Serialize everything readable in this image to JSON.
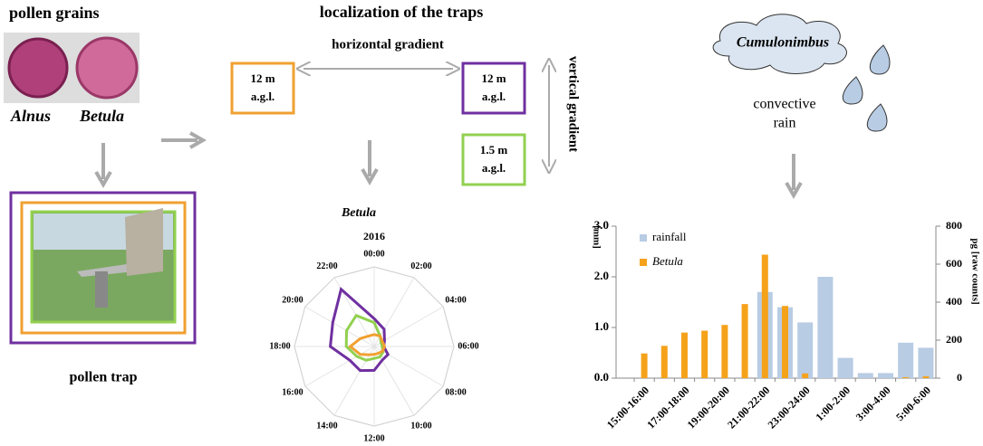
{
  "pollen": {
    "title": "pollen grains",
    "grains": [
      "Alnus",
      "Betula"
    ],
    "trap": "pollen trap"
  },
  "traps": {
    "title": "localization of the traps",
    "horizontal": "horizontal gradient",
    "vertical": "vertical gradient",
    "boxes": [
      [
        "12 m",
        "a.g.l."
      ],
      [
        "12 m",
        "a.g.l."
      ],
      [
        "1.5 m",
        "a.g.l."
      ]
    ]
  },
  "cloud": {
    "label": "Cumulonimbus",
    "rain": [
      "convective",
      "rain"
    ]
  },
  "chart_data": [
    {
      "type": "radar",
      "title": "Betula",
      "subtitle": "2016",
      "categories": [
        "00:00",
        "02:00",
        "04:00",
        "06:00",
        "08:00",
        "10:00",
        "12:00",
        "14:00",
        "16:00",
        "18:00",
        "20:00",
        "22:00"
      ],
      "rlim": [
        0,
        10
      ],
      "series": [
        {
          "color": "#7030a0",
          "values": [
            3.5,
            2.5,
            1.5,
            1.2,
            2.0,
            2.0,
            3.0,
            3.5,
            3.5,
            5.5,
            6.0,
            8.3
          ]
        },
        {
          "color": "#92d050",
          "values": [
            3.0,
            1.5,
            1.0,
            1.0,
            1.3,
            1.5,
            1.5,
            2.0,
            2.5,
            3.5,
            4.0,
            4.5
          ]
        },
        {
          "color": "#f0a030",
          "values": [
            1.5,
            1.5,
            1.2,
            1.3,
            1.2,
            1.0,
            1.0,
            1.2,
            2.0,
            3.0,
            2.0,
            1.5
          ]
        }
      ]
    },
    {
      "type": "bar",
      "ylabel": "[mm]",
      "y2label": "pg [raw counts]",
      "legend": "top-left",
      "categories": [
        "15:00-16:00",
        null,
        "17:00-18:00",
        null,
        "19:00-20:00",
        null,
        "21:00-22:00",
        null,
        "23:00-24:00",
        null,
        "1:00-2:00",
        null,
        "3:00-4:00",
        null,
        "5:00-6:00"
      ],
      "ylim": [
        0,
        3
      ],
      "yticks": [
        {
          "value": 0,
          "label": "0.0"
        },
        {
          "value": 1,
          "label": "1.0"
        },
        {
          "value": 2,
          "label": "2.0"
        },
        {
          "value": 3,
          "label": "3.0"
        }
      ],
      "y2lim": [
        0,
        800
      ],
      "y2ticks": [
        0,
        200,
        400,
        600,
        800
      ],
      "series": [
        {
          "name": "rainfall",
          "color": "#b8cce4",
          "values": [
            0,
            0,
            0,
            0,
            0,
            0,
            1.7,
            1.4,
            1.1,
            2.0,
            0.4,
            0.1,
            0.1,
            0.7,
            0.6
          ]
        },
        {
          "name": "Betula",
          "color": "#f5a21b",
          "axis": "y2",
          "values": [
            130,
            170,
            240,
            250,
            280,
            390,
            650,
            380,
            25,
            0,
            0,
            0,
            0,
            5,
            10
          ]
        }
      ]
    }
  ]
}
